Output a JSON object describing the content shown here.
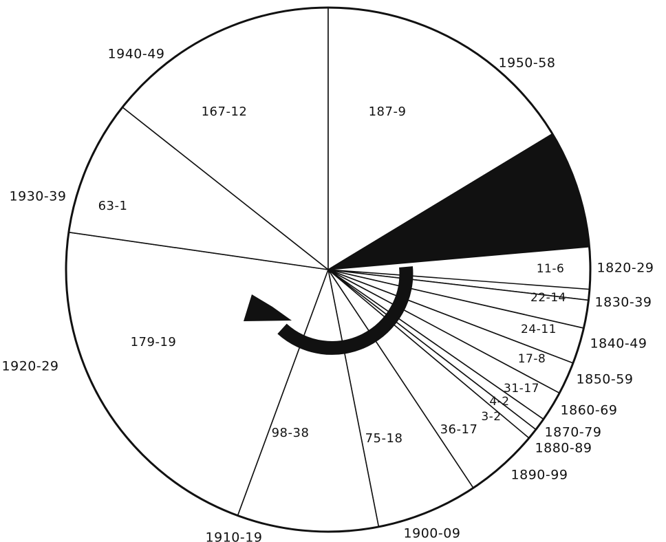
{
  "colors": {
    "ink": "#111111",
    "paper": "#ffffff",
    "wedge": "#111111"
  },
  "chart_data": {
    "type": "pie",
    "title": "",
    "direction": "counterclockwise",
    "arrow_icon": "curved-arrow-counterclockwise",
    "slices": [
      {
        "period": "1820-29",
        "label": "11-6"
      },
      {
        "period": "1830-39",
        "label": "22-14"
      },
      {
        "period": "1840-49",
        "label": "24-11"
      },
      {
        "period": "1850-59",
        "label": "17-8"
      },
      {
        "period": "1860-69",
        "label": "31-17"
      },
      {
        "period": "1870-79",
        "label": "4-2"
      },
      {
        "period": "1880-89",
        "label": "3-2"
      },
      {
        "period": "1890-99",
        "label": "36-17"
      },
      {
        "period": "1900-09",
        "label": "75-18"
      },
      {
        "period": "1910-19",
        "label": "98-38"
      },
      {
        "period": "1920-29",
        "label": "179-19"
      },
      {
        "period": "1930-39",
        "label": "63-1"
      },
      {
        "period": "1940-49",
        "label": "167-12"
      },
      {
        "period": "1950-58",
        "label": "187-9"
      },
      {
        "period": "",
        "label": "",
        "filled": true
      }
    ]
  }
}
